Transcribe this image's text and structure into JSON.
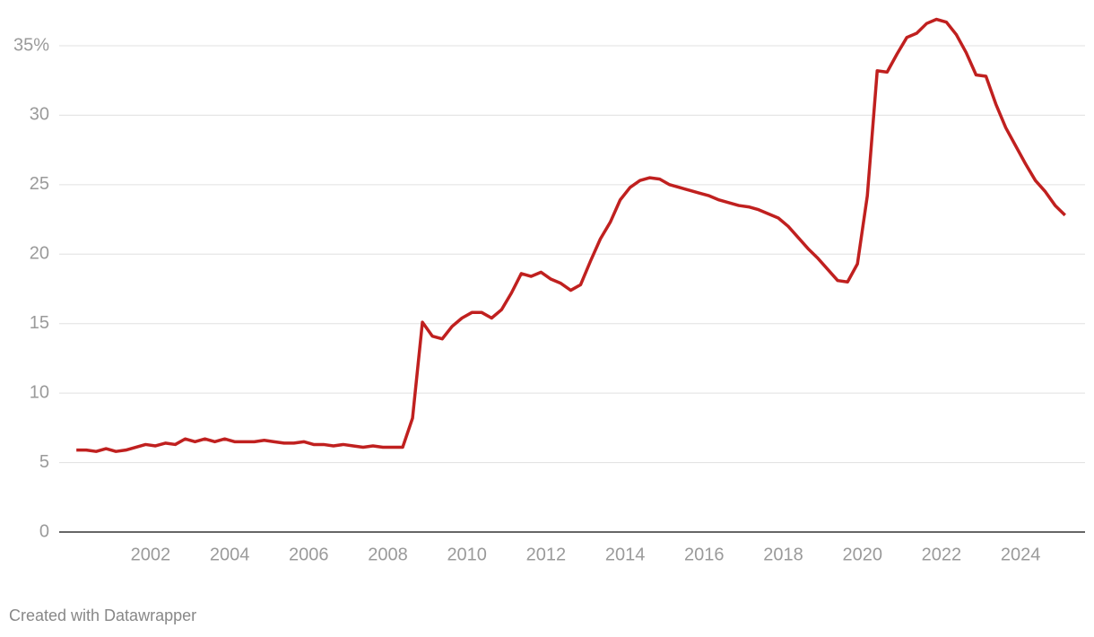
{
  "chart_data": {
    "type": "line",
    "x": [
      2000.125,
      2000.375,
      2000.625,
      2000.875,
      2001.125,
      2001.375,
      2001.625,
      2001.875,
      2002.125,
      2002.375,
      2002.625,
      2002.875,
      2003.125,
      2003.375,
      2003.625,
      2003.875,
      2004.125,
      2004.375,
      2004.625,
      2004.875,
      2005.125,
      2005.375,
      2005.625,
      2005.875,
      2006.125,
      2006.375,
      2006.625,
      2006.875,
      2007.125,
      2007.375,
      2007.625,
      2007.875,
      2008.125,
      2008.375,
      2008.625,
      2008.875,
      2009.125,
      2009.375,
      2009.625,
      2009.875,
      2010.125,
      2010.375,
      2010.625,
      2010.875,
      2011.125,
      2011.375,
      2011.625,
      2011.875,
      2012.125,
      2012.375,
      2012.625,
      2012.875,
      2013.125,
      2013.375,
      2013.625,
      2013.875,
      2014.125,
      2014.375,
      2014.625,
      2014.875,
      2015.125,
      2015.375,
      2015.625,
      2015.875,
      2016.125,
      2016.375,
      2016.625,
      2016.875,
      2017.125,
      2017.375,
      2017.625,
      2017.875,
      2018.125,
      2018.375,
      2018.625,
      2018.875,
      2019.125,
      2019.375,
      2019.625,
      2019.875,
      2020.125,
      2020.375,
      2020.625,
      2020.875,
      2021.125,
      2021.375,
      2021.625,
      2021.875,
      2022.125,
      2022.375,
      2022.625,
      2022.875,
      2023.125,
      2023.375,
      2023.625,
      2023.875,
      2024.125,
      2024.375,
      2024.625,
      2024.875,
      2025.125
    ],
    "series": [
      {
        "color": "#c0201f",
        "values": [
          5.9,
          5.9,
          5.8,
          6.0,
          5.8,
          5.9,
          6.1,
          6.3,
          6.2,
          6.4,
          6.3,
          6.7,
          6.5,
          6.7,
          6.5,
          6.7,
          6.5,
          6.5,
          6.5,
          6.6,
          6.5,
          6.4,
          6.4,
          6.5,
          6.3,
          6.3,
          6.2,
          6.3,
          6.2,
          6.1,
          6.2,
          6.1,
          6.1,
          6.1,
          8.2,
          15.1,
          14.1,
          13.9,
          14.8,
          15.4,
          15.8,
          15.8,
          15.4,
          16.0,
          17.2,
          18.6,
          18.4,
          18.7,
          18.2,
          17.9,
          17.4,
          17.8,
          19.5,
          21.1,
          22.3,
          23.9,
          24.8,
          25.3,
          25.5,
          25.4,
          25.0,
          24.8,
          24.6,
          24.4,
          24.2,
          23.9,
          23.7,
          23.5,
          23.4,
          23.2,
          22.9,
          22.6,
          22.0,
          21.2,
          20.4,
          19.7,
          18.9,
          18.1,
          18.0,
          19.3,
          24.2,
          33.2,
          33.1,
          34.4,
          35.6,
          35.9,
          36.6,
          36.9,
          36.7,
          35.8,
          34.5,
          32.9,
          32.8,
          30.8,
          29.1,
          27.8,
          26.5,
          25.3,
          24.5,
          23.5,
          22.8
        ]
      }
    ],
    "xlim": [
      1999.69,
      2025.63
    ],
    "xticks": [
      2002,
      2004,
      2006,
      2008,
      2010,
      2012,
      2014,
      2016,
      2018,
      2020,
      2022,
      2024
    ],
    "ylim": [
      0,
      37
    ],
    "yticks": [
      0,
      5,
      10,
      15,
      20,
      25,
      30,
      {
        "value": 35,
        "label": "35%"
      }
    ],
    "grid": true,
    "footer": "Created with Datawrapper"
  }
}
